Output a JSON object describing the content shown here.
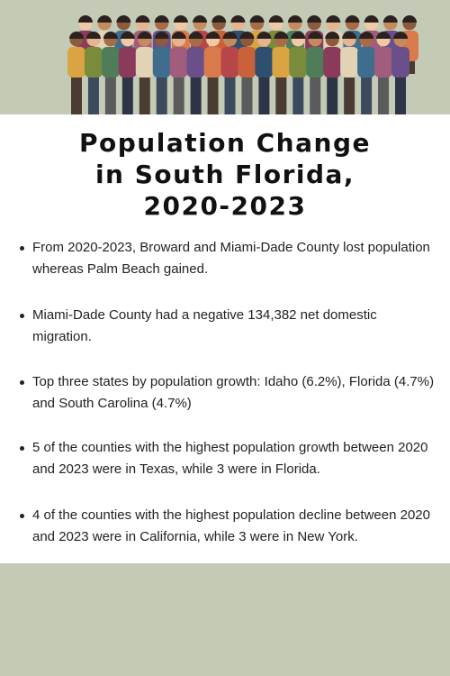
{
  "header": {
    "title_lines": [
      "Population Change",
      "in South Florida,",
      "2020-2023"
    ]
  },
  "bullets": [
    {
      "lines": [
        "From 2020-2023, Broward and Miami-Dade County lost population",
        "whereas Palm Beach gained."
      ]
    },
    {
      "lines": [
        "Miami-Dade County had a negative 134,382 net domestic",
        "migration."
      ]
    },
    {
      "lines": [
        "Top three states by population growth: Idaho (6.2%), Florida (4.7%)",
        "and South Carolina (4.7%)"
      ]
    },
    {
      "lines": [
        "5 of the counties with the highest population growth between 2020",
        "and 2023 were in Texas, while 3 were in Florida."
      ]
    },
    {
      "lines": [
        "4 of the counties with the highest population decline between 2020",
        "and 2023 were in California, while 3 were in New York."
      ]
    }
  ]
}
